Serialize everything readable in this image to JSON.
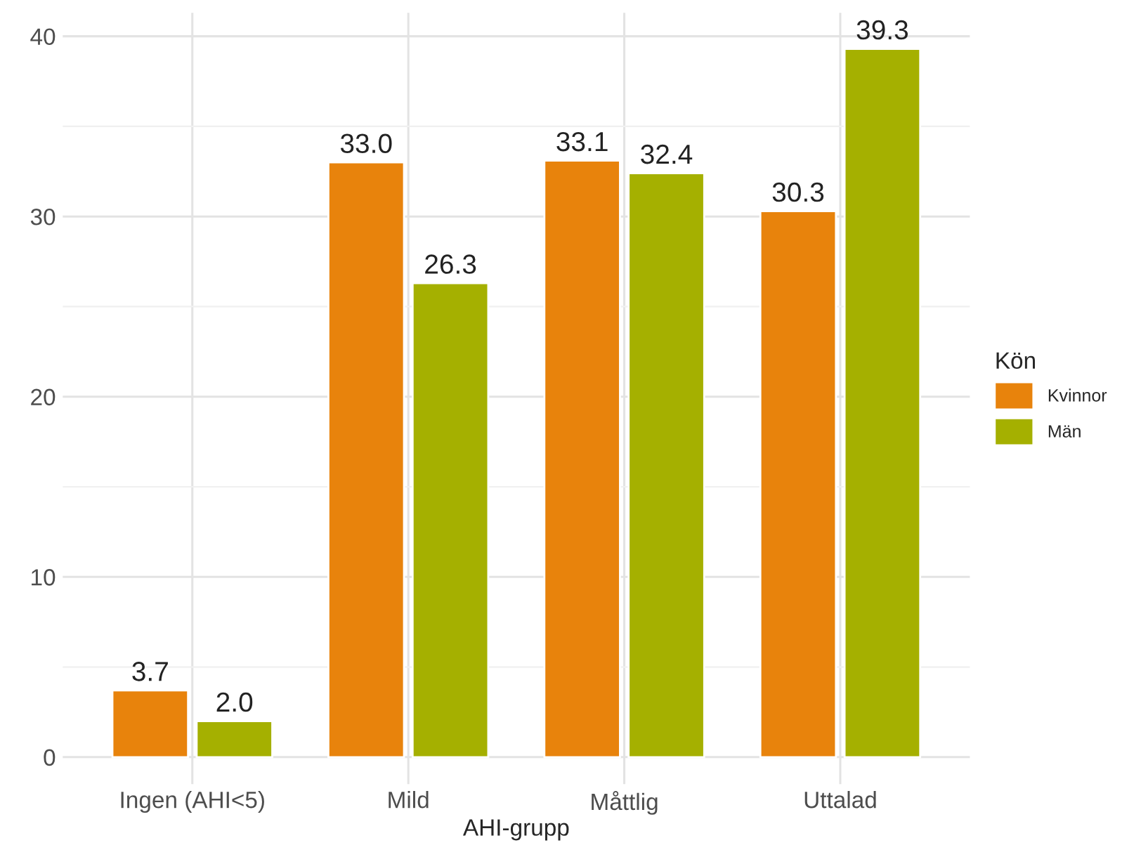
{
  "chart_data": {
    "type": "bar",
    "xlabel": "AHI-grupp",
    "legend_title": "Kön",
    "categories": [
      "Ingen (AHI<5)",
      "Mild",
      "Måttlig",
      "Uttalad"
    ],
    "series": [
      {
        "name": "Kvinnor",
        "color": "#e8830c",
        "values": [
          3.7,
          33.0,
          33.1,
          30.3
        ],
        "value_labels": [
          "3.7",
          "33.0",
          "33.1",
          "30.3"
        ]
      },
      {
        "name": "Män",
        "color": "#a5b000",
        "values": [
          2.0,
          26.3,
          32.4,
          39.3
        ],
        "value_labels": [
          "2.0",
          "26.3",
          "32.4",
          "39.3"
        ]
      }
    ],
    "ylim": [
      -1.5,
      41.3
    ],
    "yticks": [
      0,
      10,
      20,
      30,
      40
    ],
    "grid": true,
    "legend": "right"
  }
}
